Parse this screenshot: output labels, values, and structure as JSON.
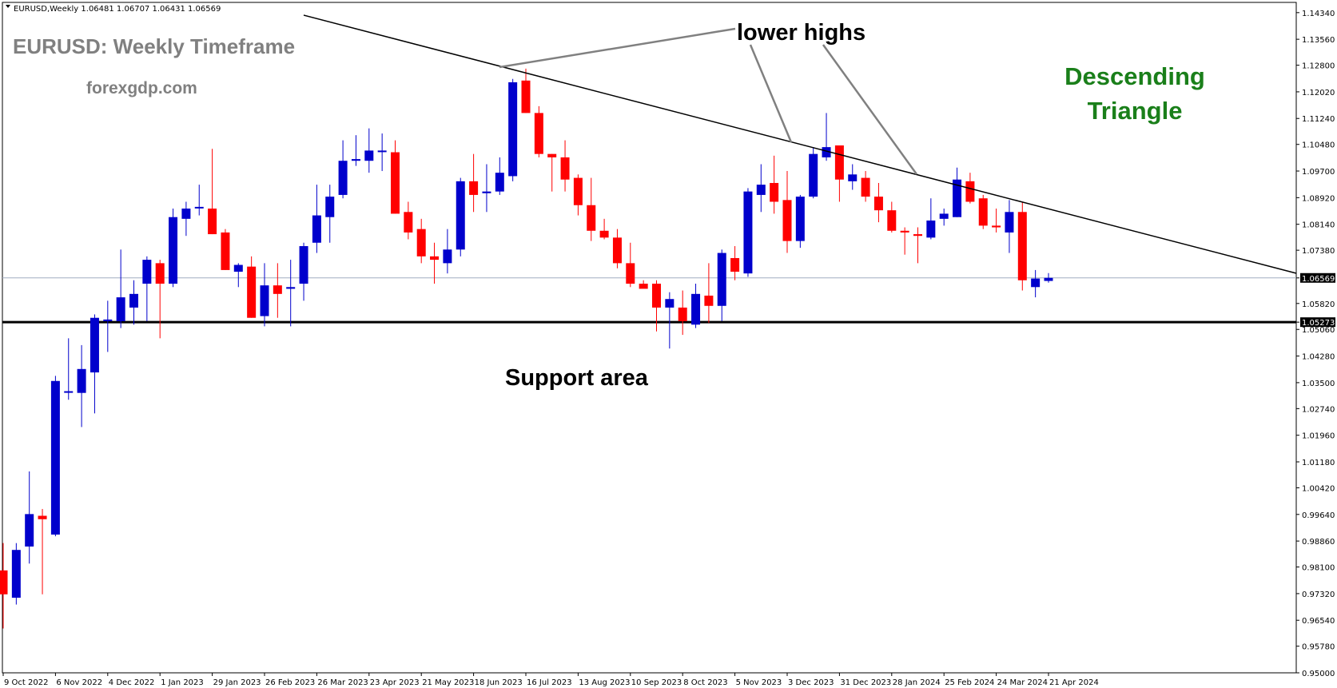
{
  "window": {
    "symbol_info": "EURUSD,Weekly  1.06481 1.06707 1.06431 1.06569"
  },
  "colors": {
    "bull": "#0000cc",
    "bear": "#ff0000",
    "wick_bull": "#0000cc",
    "wick_bear": "#ff0000",
    "trendline": "#000000",
    "support": "#000000",
    "arrow": "#808080",
    "current_price_line": "#a0aec0"
  },
  "annotations": {
    "title": "EURUSD: Weekly Timeframe",
    "site": "forexgdp.com",
    "lower_highs": "lower highs",
    "pattern_line1": "Descending",
    "pattern_line2": "Triangle",
    "support_label": "Support area"
  },
  "chart_data": {
    "type": "candlestick",
    "symbol": "EURUSD",
    "timeframe": "Weekly",
    "ohlc_header": {
      "open": 1.06481,
      "high": 1.06707,
      "low": 1.06431,
      "close": 1.06569
    },
    "y_range": [
      0.95,
      1.1464
    ],
    "y_ticks": [
      "1.14340",
      "1.13560",
      "1.12800",
      "1.12020",
      "1.11240",
      "1.10480",
      "1.09700",
      "1.08920",
      "1.08140",
      "1.07380",
      "1.06569",
      "1.05820",
      "1.05273",
      "1.05060",
      "1.04280",
      "1.03500",
      "1.02740",
      "1.01960",
      "1.01180",
      "1.00420",
      "0.99640",
      "0.98860",
      "0.98100",
      "0.97320",
      "0.96540",
      "0.95780",
      "0.95000"
    ],
    "current_price": "1.06569",
    "support_price": "1.05273",
    "x_labels": [
      {
        "label": "9 Oct 2022",
        "index": 0
      },
      {
        "label": "6 Nov 2022",
        "index": 4
      },
      {
        "label": "4 Dec 2022",
        "index": 8
      },
      {
        "label": "1 Jan 2023",
        "index": 12
      },
      {
        "label": "29 Jan 2023",
        "index": 16
      },
      {
        "label": "26 Feb 2023",
        "index": 20
      },
      {
        "label": "26 Mar 2023",
        "index": 24
      },
      {
        "label": "23 Apr 2023",
        "index": 28
      },
      {
        "label": "21 May 2023",
        "index": 32
      },
      {
        "label": "18 Jun 2023",
        "index": 36
      },
      {
        "label": "16 Jul 2023",
        "index": 40
      },
      {
        "label": "13 Aug 2023",
        "index": 44
      },
      {
        "label": "10 Sep 2023",
        "index": 48
      },
      {
        "label": "8 Oct 2023",
        "index": 52
      },
      {
        "label": "5 Nov 2023",
        "index": 56
      },
      {
        "label": "3 Dec 2023",
        "index": 60
      },
      {
        "label": "31 Dec 2023",
        "index": 64
      },
      {
        "label": "28 Jan 2024",
        "index": 68
      },
      {
        "label": "25 Feb 2024",
        "index": 72
      },
      {
        "label": "24 Mar 2024",
        "index": 76
      },
      {
        "label": "21 Apr 2024",
        "index": 80
      }
    ],
    "candles": [
      {
        "o": 0.98,
        "h": 0.988,
        "l": 0.963,
        "c": 0.973
      },
      {
        "o": 0.972,
        "h": 0.988,
        "l": 0.97,
        "c": 0.986
      },
      {
        "o": 0.987,
        "h": 1.009,
        "l": 0.982,
        "c": 0.9965
      },
      {
        "o": 0.996,
        "h": 0.998,
        "l": 0.973,
        "c": 0.995
      },
      {
        "o": 0.9905,
        "h": 1.037,
        "l": 0.99,
        "c": 1.0355
      },
      {
        "o": 1.0325,
        "h": 1.048,
        "l": 1.03,
        "c": 1.0325
      },
      {
        "o": 1.032,
        "h": 1.046,
        "l": 1.022,
        "c": 1.039
      },
      {
        "o": 1.038,
        "h": 1.055,
        "l": 1.026,
        "c": 1.054
      },
      {
        "o": 1.053,
        "h": 1.059,
        "l": 1.044,
        "c": 1.0535
      },
      {
        "o": 1.053,
        "h": 1.074,
        "l": 1.051,
        "c": 1.06
      },
      {
        "o": 1.057,
        "h": 1.065,
        "l": 1.052,
        "c": 1.061
      },
      {
        "o": 1.064,
        "h": 1.072,
        "l": 1.053,
        "c": 1.071
      },
      {
        "o": 1.07,
        "h": 1.071,
        "l": 1.048,
        "c": 1.064
      },
      {
        "o": 1.064,
        "h": 1.086,
        "l": 1.063,
        "c": 1.0835
      },
      {
        "o": 1.083,
        "h": 1.088,
        "l": 1.078,
        "c": 1.086
      },
      {
        "o": 1.0865,
        "h": 1.093,
        "l": 1.084,
        "c": 1.0865
      },
      {
        "o": 1.086,
        "h": 1.1035,
        "l": 1.0785,
        "c": 1.0785
      },
      {
        "o": 1.079,
        "h": 1.08,
        "l": 1.068,
        "c": 1.068
      },
      {
        "o": 1.0675,
        "h": 1.07,
        "l": 1.063,
        "c": 1.0695
      },
      {
        "o": 1.069,
        "h": 1.072,
        "l": 1.054,
        "c": 1.054
      },
      {
        "o": 1.0545,
        "h": 1.07,
        "l": 1.0515,
        "c": 1.0635
      },
      {
        "o": 1.0635,
        "h": 1.07,
        "l": 1.054,
        "c": 1.061
      },
      {
        "o": 1.0625,
        "h": 1.071,
        "l": 1.0515,
        "c": 1.063
      },
      {
        "o": 1.064,
        "h": 1.076,
        "l": 1.059,
        "c": 1.075
      },
      {
        "o": 1.076,
        "h": 1.093,
        "l": 1.073,
        "c": 1.084
      },
      {
        "o": 1.0835,
        "h": 1.093,
        "l": 1.076,
        "c": 1.0895
      },
      {
        "o": 1.09,
        "h": 1.106,
        "l": 1.089,
        "c": 1.1
      },
      {
        "o": 1.1,
        "h": 1.1075,
        "l": 1.0985,
        "c": 1.1005
      },
      {
        "o": 1.1,
        "h": 1.1095,
        "l": 1.0965,
        "c": 1.103
      },
      {
        "o": 1.103,
        "h": 1.108,
        "l": 1.097,
        "c": 1.103
      },
      {
        "o": 1.1025,
        "h": 1.106,
        "l": 1.0845,
        "c": 1.0845
      },
      {
        "o": 1.085,
        "h": 1.088,
        "l": 1.077,
        "c": 1.079
      },
      {
        "o": 1.08,
        "h": 1.083,
        "l": 1.07,
        "c": 1.072
      },
      {
        "o": 1.072,
        "h": 1.076,
        "l": 1.064,
        "c": 1.071
      },
      {
        "o": 1.07,
        "h": 1.08,
        "l": 1.067,
        "c": 1.074
      },
      {
        "o": 1.074,
        "h": 1.095,
        "l": 1.072,
        "c": 1.094
      },
      {
        "o": 1.094,
        "h": 1.102,
        "l": 1.085,
        "c": 1.09
      },
      {
        "o": 1.0905,
        "h": 1.099,
        "l": 1.085,
        "c": 1.091
      },
      {
        "o": 1.091,
        "h": 1.101,
        "l": 1.09,
        "c": 1.0965
      },
      {
        "o": 1.0955,
        "h": 1.124,
        "l": 1.094,
        "c": 1.123
      },
      {
        "o": 1.1235,
        "h": 1.127,
        "l": 1.114,
        "c": 1.114
      },
      {
        "o": 1.114,
        "h": 1.116,
        "l": 1.101,
        "c": 1.102
      },
      {
        "o": 1.102,
        "h": 1.102,
        "l": 1.091,
        "c": 1.101
      },
      {
        "o": 1.101,
        "h": 1.106,
        "l": 1.091,
        "c": 1.0945
      },
      {
        "o": 1.095,
        "h": 1.096,
        "l": 1.084,
        "c": 1.087
      },
      {
        "o": 1.087,
        "h": 1.095,
        "l": 1.0765,
        "c": 1.0795
      },
      {
        "o": 1.0795,
        "h": 1.083,
        "l": 1.077,
        "c": 1.0775
      },
      {
        "o": 1.0775,
        "h": 1.08,
        "l": 1.0685,
        "c": 1.07
      },
      {
        "o": 1.07,
        "h": 1.076,
        "l": 1.063,
        "c": 1.064
      },
      {
        "o": 1.064,
        "h": 1.065,
        "l": 1.063,
        "c": 1.0625
      },
      {
        "o": 1.064,
        "h": 1.065,
        "l": 1.05,
        "c": 1.057
      },
      {
        "o": 1.057,
        "h": 1.0615,
        "l": 1.045,
        "c": 1.0595
      },
      {
        "o": 1.057,
        "h": 1.062,
        "l": 1.049,
        "c": 1.053
      },
      {
        "o": 1.052,
        "h": 1.064,
        "l": 1.051,
        "c": 1.061
      },
      {
        "o": 1.0605,
        "h": 1.07,
        "l": 1.0525,
        "c": 1.0575
      },
      {
        "o": 1.0575,
        "h": 1.074,
        "l": 1.053,
        "c": 1.073
      },
      {
        "o": 1.0715,
        "h": 1.075,
        "l": 1.065,
        "c": 1.0675
      },
      {
        "o": 1.067,
        "h": 1.092,
        "l": 1.066,
        "c": 1.091
      },
      {
        "o": 1.09,
        "h": 1.099,
        "l": 1.085,
        "c": 1.093
      },
      {
        "o": 1.0935,
        "h": 1.1015,
        "l": 1.0845,
        "c": 1.088
      },
      {
        "o": 1.0885,
        "h": 1.097,
        "l": 1.073,
        "c": 1.0765
      },
      {
        "o": 1.0765,
        "h": 1.09,
        "l": 1.0745,
        "c": 1.0895
      },
      {
        "o": 1.0895,
        "h": 1.104,
        "l": 1.089,
        "c": 1.102
      },
      {
        "o": 1.101,
        "h": 1.114,
        "l": 1.1,
        "c": 1.104
      },
      {
        "o": 1.1045,
        "h": 1.1045,
        "l": 1.088,
        "c": 1.0945
      },
      {
        "o": 1.094,
        "h": 1.099,
        "l": 1.0915,
        "c": 1.096
      },
      {
        "o": 1.095,
        "h": 1.097,
        "l": 1.088,
        "c": 1.0895
      },
      {
        "o": 1.0895,
        "h": 1.0935,
        "l": 1.082,
        "c": 1.0855
      },
      {
        "o": 1.0855,
        "h": 1.088,
        "l": 1.079,
        "c": 1.0795
      },
      {
        "o": 1.0795,
        "h": 1.0805,
        "l": 1.0725,
        "c": 1.079
      },
      {
        "o": 1.0785,
        "h": 1.0805,
        "l": 1.07,
        "c": 1.078
      },
      {
        "o": 1.0775,
        "h": 1.089,
        "l": 1.077,
        "c": 1.0825
      },
      {
        "o": 1.083,
        "h": 1.086,
        "l": 1.081,
        "c": 1.0845
      },
      {
        "o": 1.0835,
        "h": 1.098,
        "l": 1.0835,
        "c": 1.0945
      },
      {
        "o": 1.094,
        "h": 1.0965,
        "l": 1.0875,
        "c": 1.088
      },
      {
        "o": 1.089,
        "h": 1.09,
        "l": 1.08,
        "c": 1.081
      },
      {
        "o": 1.081,
        "h": 1.086,
        "l": 1.079,
        "c": 1.0805
      },
      {
        "o": 1.079,
        "h": 1.0885,
        "l": 1.073,
        "c": 1.085
      },
      {
        "o": 1.085,
        "h": 1.088,
        "l": 1.062,
        "c": 1.065
      },
      {
        "o": 1.063,
        "h": 1.068,
        "l": 1.06,
        "c": 1.0655
      },
      {
        "o": 1.0648,
        "h": 1.0671,
        "l": 1.0643,
        "c": 1.0657
      }
    ]
  }
}
